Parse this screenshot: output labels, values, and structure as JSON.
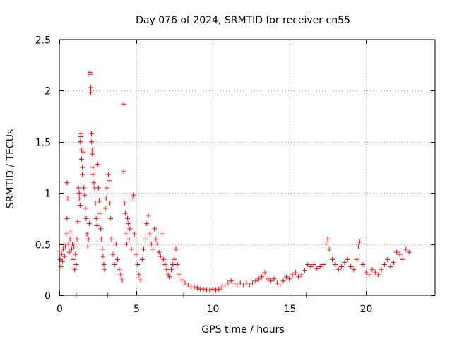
{
  "chart_data": {
    "type": "scatter",
    "title": "Day 076 of 2024, SRMTID for receiver cn55",
    "xlabel": "GPS time / hours",
    "ylabel": "SRMTID / TECUs",
    "xlim": [
      0,
      24.5
    ],
    "ylim": [
      0,
      2.5
    ],
    "x_ticks": [
      0,
      5,
      10,
      15,
      20
    ],
    "x_tick_labels": [
      "0",
      "5",
      "10",
      "15",
      "20"
    ],
    "y_ticks": [
      0,
      0.5,
      1,
      1.5,
      2,
      2.5
    ],
    "y_tick_labels": [
      "0",
      "0.5",
      "1",
      "1.5",
      "2",
      "2.5"
    ],
    "grid": true,
    "marker": "+",
    "series": [
      {
        "name": "SRMTID",
        "color": "#ff0000",
        "points": [
          [
            0.0,
            0.43
          ],
          [
            0.05,
            0.35
          ],
          [
            0.1,
            0.28
          ],
          [
            0.15,
            0.4
          ],
          [
            0.2,
            0.33
          ],
          [
            0.25,
            0.45
          ],
          [
            0.3,
            0.5
          ],
          [
            0.35,
            0.38
          ],
          [
            0.4,
            0.48
          ],
          [
            0.45,
            0.6
          ],
          [
            0.5,
            0.75
          ],
          [
            0.5,
            1.1
          ],
          [
            0.55,
            0.95
          ],
          [
            0.6,
            0.5
          ],
          [
            0.65,
            0.42
          ],
          [
            0.7,
            0.55
          ],
          [
            0.75,
            0.62
          ],
          [
            0.8,
            0.45
          ],
          [
            0.85,
            0.5
          ],
          [
            0.9,
            0.35
          ],
          [
            0.95,
            0.48
          ],
          [
            1.0,
            0.25
          ],
          [
            1.05,
            0.4
          ],
          [
            1.1,
            0.3
          ],
          [
            1.1,
            0.0
          ],
          [
            1.15,
            0.55
          ],
          [
            1.2,
            0.72
          ],
          [
            1.25,
            1.05
          ],
          [
            1.3,
            0.95
          ],
          [
            1.3,
            1.0
          ],
          [
            1.35,
            0.88
          ],
          [
            1.35,
            1.5
          ],
          [
            1.4,
            1.58
          ],
          [
            1.4,
            1.55
          ],
          [
            1.45,
            1.42
          ],
          [
            1.45,
            1.33
          ],
          [
            1.5,
            1.25
          ],
          [
            1.5,
            1.18
          ],
          [
            1.55,
            1.4
          ],
          [
            1.6,
            1.05
          ],
          [
            1.65,
            0.98
          ],
          [
            1.7,
            0.85
          ],
          [
            1.75,
            0.75
          ],
          [
            1.8,
            0.6
          ],
          [
            1.85,
            0.48
          ],
          [
            1.9,
            0.55
          ],
          [
            1.95,
            0.7
          ],
          [
            2.0,
            2.18
          ],
          [
            2.0,
            2.16
          ],
          [
            2.05,
            2.03
          ],
          [
            2.05,
            1.98
          ],
          [
            2.1,
            1.58
          ],
          [
            2.1,
            1.5
          ],
          [
            2.15,
            1.42
          ],
          [
            2.15,
            1.38
          ],
          [
            2.2,
            1.25
          ],
          [
            2.2,
            1.18
          ],
          [
            2.25,
            1.1
          ],
          [
            2.3,
            1.05
          ],
          [
            2.35,
            0.9
          ],
          [
            2.4,
            0.75
          ],
          [
            2.45,
            0.68
          ],
          [
            2.5,
            1.28
          ],
          [
            2.55,
            1.05
          ],
          [
            2.6,
            0.92
          ],
          [
            2.65,
            0.8
          ],
          [
            2.7,
            0.65
          ],
          [
            2.75,
            0.55
          ],
          [
            2.8,
            0.45
          ],
          [
            2.85,
            0.38
          ],
          [
            2.9,
            0.3
          ],
          [
            2.95,
            0.25
          ],
          [
            3.0,
            0.85
          ],
          [
            3.05,
            0.95
          ],
          [
            3.1,
            1.05
          ],
          [
            3.15,
            0.0
          ],
          [
            3.2,
            1.18
          ],
          [
            3.25,
            1.12
          ],
          [
            3.3,
            0.9
          ],
          [
            3.35,
            0.75
          ],
          [
            3.4,
            0.55
          ],
          [
            3.5,
            0.4
          ],
          [
            3.6,
            0.3
          ],
          [
            3.7,
            0.5
          ],
          [
            3.8,
            0.35
          ],
          [
            3.9,
            0.25
          ],
          [
            4.0,
            0.2
          ],
          [
            4.1,
            0.15
          ],
          [
            4.2,
            1.87
          ],
          [
            4.2,
            1.21
          ],
          [
            4.25,
            0.9
          ],
          [
            4.3,
            0.8
          ],
          [
            4.35,
            0.6
          ],
          [
            4.4,
            0.5
          ],
          [
            4.45,
            0.75
          ],
          [
            4.5,
            0.7
          ],
          [
            4.55,
            0.55
          ],
          [
            4.6,
            0.65
          ],
          [
            4.7,
            0.45
          ],
          [
            4.8,
            0.95
          ],
          [
            4.85,
            0.98
          ],
          [
            4.9,
            0.6
          ],
          [
            5.0,
            0.4
          ],
          [
            5.1,
            0.3
          ],
          [
            5.2,
            0.2
          ],
          [
            5.3,
            0.15
          ],
          [
            5.4,
            0.35
          ],
          [
            5.5,
            0.45
          ],
          [
            5.6,
            0.55
          ],
          [
            5.7,
            0.7
          ],
          [
            5.8,
            0.78
          ],
          [
            5.9,
            0.6
          ],
          [
            6.0,
            0.5
          ],
          [
            6.1,
            0.45
          ],
          [
            6.2,
            0.65
          ],
          [
            6.3,
            0.55
          ],
          [
            6.4,
            0.5
          ],
          [
            6.5,
            0.42
          ],
          [
            6.6,
            0.38
          ],
          [
            6.7,
            0.6
          ],
          [
            6.8,
            0.35
          ],
          [
            6.9,
            0.3
          ],
          [
            7.0,
            0.25
          ],
          [
            7.1,
            0.2
          ],
          [
            7.2,
            0.18
          ],
          [
            7.3,
            0.25
          ],
          [
            7.4,
            0.3
          ],
          [
            7.5,
            0.35
          ],
          [
            7.6,
            0.45
          ],
          [
            7.7,
            0.3
          ],
          [
            7.8,
            0.2
          ],
          [
            8.0,
            0.15
          ],
          [
            8.1,
            0.0
          ],
          [
            8.2,
            0.12
          ],
          [
            8.4,
            0.1
          ],
          [
            8.6,
            0.08
          ],
          [
            8.8,
            0.08
          ],
          [
            9.0,
            0.07
          ],
          [
            9.2,
            0.06
          ],
          [
            9.4,
            0.06
          ],
          [
            9.6,
            0.05
          ],
          [
            9.8,
            0.05
          ],
          [
            10.0,
            0.06
          ],
          [
            10.2,
            0.05
          ],
          [
            10.4,
            0.06
          ],
          [
            10.6,
            0.08
          ],
          [
            10.8,
            0.1
          ],
          [
            11.0,
            0.12
          ],
          [
            11.2,
            0.14
          ],
          [
            11.4,
            0.12
          ],
          [
            11.6,
            0.1
          ],
          [
            11.8,
            0.12
          ],
          [
            12.0,
            0.1
          ],
          [
            12.2,
            0.12
          ],
          [
            12.4,
            0.1
          ],
          [
            12.6,
            0.12
          ],
          [
            12.8,
            0.14
          ],
          [
            13.0,
            0.16
          ],
          [
            13.2,
            0.18
          ],
          [
            13.4,
            0.22
          ],
          [
            13.6,
            0.16
          ],
          [
            13.8,
            0.14
          ],
          [
            14.0,
            0.16
          ],
          [
            14.2,
            0.12
          ],
          [
            14.4,
            0.1
          ],
          [
            14.6,
            0.14
          ],
          [
            14.8,
            0.18
          ],
          [
            15.0,
            0.16
          ],
          [
            15.2,
            0.2
          ],
          [
            15.4,
            0.22
          ],
          [
            15.6,
            0.18
          ],
          [
            15.8,
            0.2
          ],
          [
            16.0,
            0.24
          ],
          [
            16.1,
            0.0
          ],
          [
            16.2,
            0.3
          ],
          [
            16.4,
            0.28
          ],
          [
            16.6,
            0.3
          ],
          [
            16.8,
            0.26
          ],
          [
            17.0,
            0.28
          ],
          [
            17.2,
            0.3
          ],
          [
            17.4,
            0.5
          ],
          [
            17.5,
            0.55
          ],
          [
            17.6,
            0.45
          ],
          [
            17.8,
            0.35
          ],
          [
            18.0,
            0.3
          ],
          [
            18.2,
            0.25
          ],
          [
            18.4,
            0.28
          ],
          [
            18.6,
            0.32
          ],
          [
            18.8,
            0.35
          ],
          [
            19.0,
            0.28
          ],
          [
            19.2,
            0.25
          ],
          [
            19.4,
            0.35
          ],
          [
            19.5,
            0.48
          ],
          [
            19.6,
            0.52
          ],
          [
            19.8,
            0.3
          ],
          [
            20.0,
            0.22
          ],
          [
            20.2,
            0.2
          ],
          [
            20.4,
            0.25
          ],
          [
            20.6,
            0.22
          ],
          [
            20.8,
            0.2
          ],
          [
            21.0,
            0.25
          ],
          [
            21.2,
            0.3
          ],
          [
            21.4,
            0.35
          ],
          [
            21.6,
            0.28
          ],
          [
            21.8,
            0.32
          ],
          [
            22.0,
            0.42
          ],
          [
            22.2,
            0.4
          ],
          [
            22.4,
            0.35
          ],
          [
            22.6,
            0.45
          ],
          [
            22.8,
            0.42
          ]
        ]
      }
    ]
  }
}
